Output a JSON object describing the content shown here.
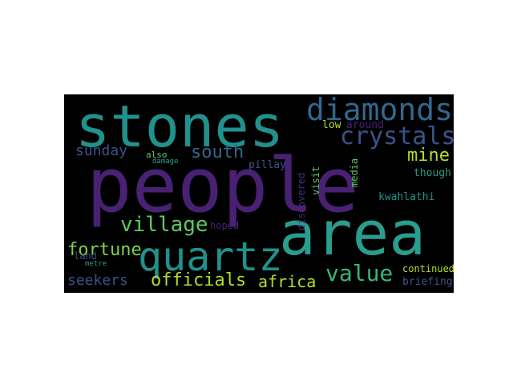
{
  "palette": {
    "purple": "#482173",
    "deep_violet": "#472d7b",
    "teal": "#21918c",
    "sea": "#2a9d8f",
    "blue_teal": "#31688e",
    "steel": "#3b528b",
    "green": "#5ec962",
    "lime": "#addc30",
    "yellow_green": "#b5de2b",
    "mint": "#7ad151",
    "jade": "#35b779",
    "aqua": "#1fa187"
  },
  "words": [
    {
      "text": "people"
    },
    {
      "text": "stones"
    },
    {
      "text": "area"
    },
    {
      "text": "diamonds"
    },
    {
      "text": "quartz"
    },
    {
      "text": "crystals"
    },
    {
      "text": "village"
    },
    {
      "text": "value"
    },
    {
      "text": "south"
    },
    {
      "text": "officials"
    },
    {
      "text": "africa"
    },
    {
      "text": "sunday"
    },
    {
      "text": "mine"
    },
    {
      "text": "fortune"
    },
    {
      "text": "seekers"
    },
    {
      "text": "pillay"
    },
    {
      "text": "low"
    },
    {
      "text": "around"
    },
    {
      "text": "also"
    },
    {
      "text": "damage"
    },
    {
      "text": "though"
    },
    {
      "text": "discovered"
    },
    {
      "text": "visit"
    },
    {
      "text": "media"
    },
    {
      "text": "kwahlathi"
    },
    {
      "text": "hoped"
    },
    {
      "text": "land"
    },
    {
      "text": "metre"
    },
    {
      "text": "continued"
    },
    {
      "text": "briefing"
    }
  ]
}
